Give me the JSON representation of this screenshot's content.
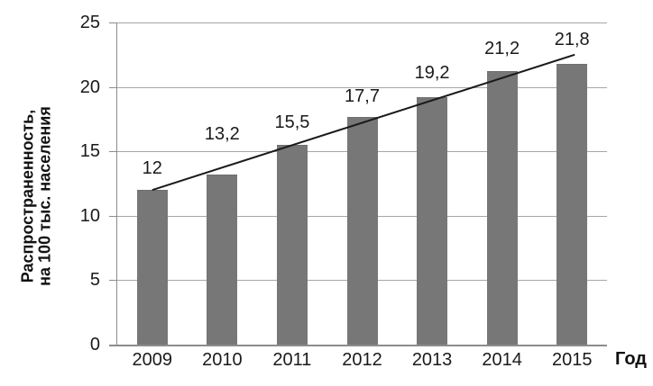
{
  "chart_data": {
    "type": "bar",
    "title": "",
    "categories": [
      "2009",
      "2010",
      "2011",
      "2012",
      "2013",
      "2014",
      "2015"
    ],
    "values": [
      12,
      13.2,
      15.5,
      17.7,
      19.2,
      21.2,
      21.8
    ],
    "value_labels": [
      "12",
      "13,2",
      "15,5",
      "17,7",
      "19,2",
      "21,2",
      "21,8"
    ],
    "xlabel": "Год",
    "ylabel_line1": "Распространенность,",
    "ylabel_line2": "на 100 тыс. населения",
    "ylim": [
      0,
      25
    ],
    "ytick_step": 5,
    "yticks": [
      "0",
      "5",
      "10",
      "15",
      "20",
      "25"
    ],
    "grid": "horizontal",
    "legend": "none",
    "trendline": {
      "type": "linear",
      "start_value": 12.0,
      "end_value": 22.5
    },
    "colors": {
      "bar": "#777777",
      "trend_line": "#1a1a1a",
      "gridline": "#a6a6a6",
      "axis": "#8c8c8c",
      "text": "#1a1a1a",
      "background": "#ffffff"
    }
  }
}
